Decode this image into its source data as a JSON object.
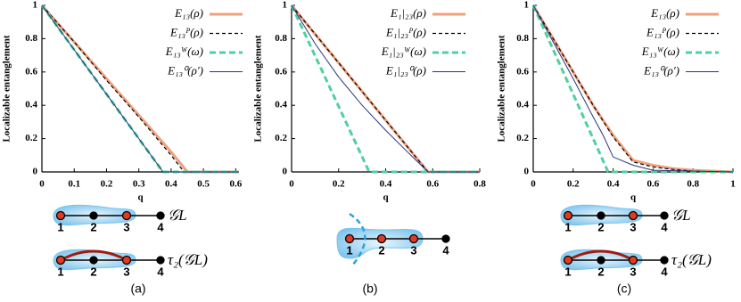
{
  "chart_data": [
    {
      "type": "line",
      "x_label": "q",
      "y_label": "Localizable entanglement",
      "xlim": [
        0,
        0.61
      ],
      "xticks": [
        0,
        0.1,
        0.2,
        0.3,
        0.4,
        0.5,
        0.6
      ],
      "ylim": [
        0,
        1
      ],
      "yticks": [
        0,
        0.2,
        0.4,
        0.6,
        0.8,
        1
      ],
      "legend": "upper right",
      "series": [
        {
          "name": "E₁₃(ρ)",
          "color": "#f0a07c",
          "linestyle": "solid",
          "linewidth": 3,
          "x": [
            0,
            0.1,
            0.2,
            0.3,
            0.4,
            0.45,
            0.61
          ],
          "values": [
            1,
            0.78,
            0.56,
            0.34,
            0.12,
            0,
            0
          ]
        },
        {
          "name": "E₁₃ᴾ(ρ)",
          "color": "#000000",
          "linestyle": "dashed",
          "linewidth": 1.2,
          "x": [
            0,
            0.1,
            0.2,
            0.3,
            0.4,
            0.44,
            0.61
          ],
          "values": [
            1,
            0.78,
            0.55,
            0.33,
            0.1,
            0,
            0
          ]
        },
        {
          "name": "E₁₃ᵂ(ω)",
          "color": "#4fd0a0",
          "linestyle": "dashed",
          "linewidth": 3,
          "x": [
            0,
            0.375,
            0.61
          ],
          "values": [
            1,
            0,
            0
          ]
        },
        {
          "name": "E₁₃⁰(ρ′)",
          "color": "#2a3580",
          "linestyle": "solid",
          "linewidth": 1,
          "x": [
            0,
            0.375,
            0.61
          ],
          "values": [
            1,
            0,
            0
          ]
        }
      ]
    },
    {
      "type": "line",
      "x_label": "q",
      "y_label": "Localizable entanglement",
      "xlim": [
        0,
        0.8
      ],
      "xticks": [
        0,
        0.2,
        0.4,
        0.6,
        0.8
      ],
      "ylim": [
        0,
        1
      ],
      "yticks": [
        0,
        0.2,
        0.4,
        0.6,
        0.8,
        1
      ],
      "legend": "upper right",
      "series": [
        {
          "name": "E₁|₂₃(ρ)",
          "color": "#f0a07c",
          "linestyle": "solid",
          "linewidth": 3,
          "x": [
            0,
            0.58,
            0.8
          ],
          "values": [
            1,
            0,
            0
          ]
        },
        {
          "name": "E₁|₂₃ᴾ(ρ)",
          "color": "#000000",
          "linestyle": "dashed",
          "linewidth": 1.2,
          "x": [
            0,
            0.58,
            0.8
          ],
          "values": [
            1,
            0,
            0
          ]
        },
        {
          "name": "E₁|₂₃ᵂ(ω)",
          "color": "#4fd0a0",
          "linestyle": "dashed",
          "linewidth": 3,
          "x": [
            0,
            0.33,
            0.8
          ],
          "values": [
            1,
            0,
            0
          ]
        },
        {
          "name": "E₁|₂₃⁰(ρ)",
          "color": "#2a3580",
          "linestyle": "solid",
          "linewidth": 1,
          "x": [
            0,
            0.1,
            0.2,
            0.3,
            0.4,
            0.5,
            0.58,
            0.8
          ],
          "values": [
            1,
            0.77,
            0.57,
            0.4,
            0.25,
            0.11,
            0,
            0
          ]
        }
      ]
    },
    {
      "type": "line",
      "x_label": "q",
      "y_label": "Localizable entanglement",
      "xlim": [
        0,
        1
      ],
      "xticks": [
        0,
        0.2,
        0.4,
        0.6,
        0.8,
        1
      ],
      "ylim": [
        0,
        1
      ],
      "yticks": [
        0,
        0.2,
        0.4,
        0.6,
        0.8,
        1
      ],
      "legend": "upper right",
      "series": [
        {
          "name": "E₁₃(ρ)",
          "color": "#f0a07c",
          "linestyle": "solid",
          "linewidth": 3,
          "x": [
            0,
            0.1,
            0.2,
            0.3,
            0.4,
            0.5,
            0.6,
            0.7,
            0.8,
            1
          ],
          "values": [
            1,
            0.8,
            0.6,
            0.4,
            0.22,
            0.07,
            0.04,
            0.02,
            0.01,
            0
          ]
        },
        {
          "name": "E₁₃ᴾ(ρ)",
          "color": "#000000",
          "linestyle": "dashed",
          "linewidth": 1.2,
          "x": [
            0,
            0.1,
            0.2,
            0.3,
            0.4,
            0.5,
            0.6,
            0.7,
            0.8,
            1
          ],
          "values": [
            1,
            0.8,
            0.6,
            0.4,
            0.21,
            0.06,
            0.03,
            0.015,
            0.005,
            0
          ]
        },
        {
          "name": "E₁₃ᵂ(ω)",
          "color": "#4fd0a0",
          "linestyle": "dashed",
          "linewidth": 3,
          "x": [
            0,
            0.375,
            1
          ],
          "values": [
            1,
            0,
            0
          ]
        },
        {
          "name": "E₁₃⁰(ρ′)",
          "color": "#2a3580",
          "linestyle": "solid",
          "linewidth": 1,
          "x": [
            0,
            0.1,
            0.2,
            0.3,
            0.35,
            0.4,
            0.5,
            0.6,
            1
          ],
          "values": [
            1,
            0.78,
            0.56,
            0.33,
            0.22,
            0.09,
            0.04,
            0.01,
            0
          ]
        }
      ]
    }
  ],
  "diagrams": [
    {
      "label": "(a)",
      "graphs": [
        {
          "nodes": [
            "1",
            "2",
            "3",
            "4"
          ],
          "name": "𝒢L"
        },
        {
          "nodes": [
            "1",
            "2",
            "3",
            "4"
          ],
          "name": "τ₂(𝒢L)"
        }
      ]
    },
    {
      "label": "(b)",
      "graphs": [
        {
          "nodes": [
            "1",
            "2",
            "3",
            "4"
          ]
        }
      ]
    },
    {
      "label": "(c)",
      "graphs": [
        {
          "nodes": [
            "1",
            "2",
            "3",
            "4"
          ],
          "name": "𝒢L"
        },
        {
          "nodes": [
            "1",
            "2",
            "3",
            "4"
          ],
          "name": "τ₂(𝒢L)"
        }
      ]
    }
  ]
}
